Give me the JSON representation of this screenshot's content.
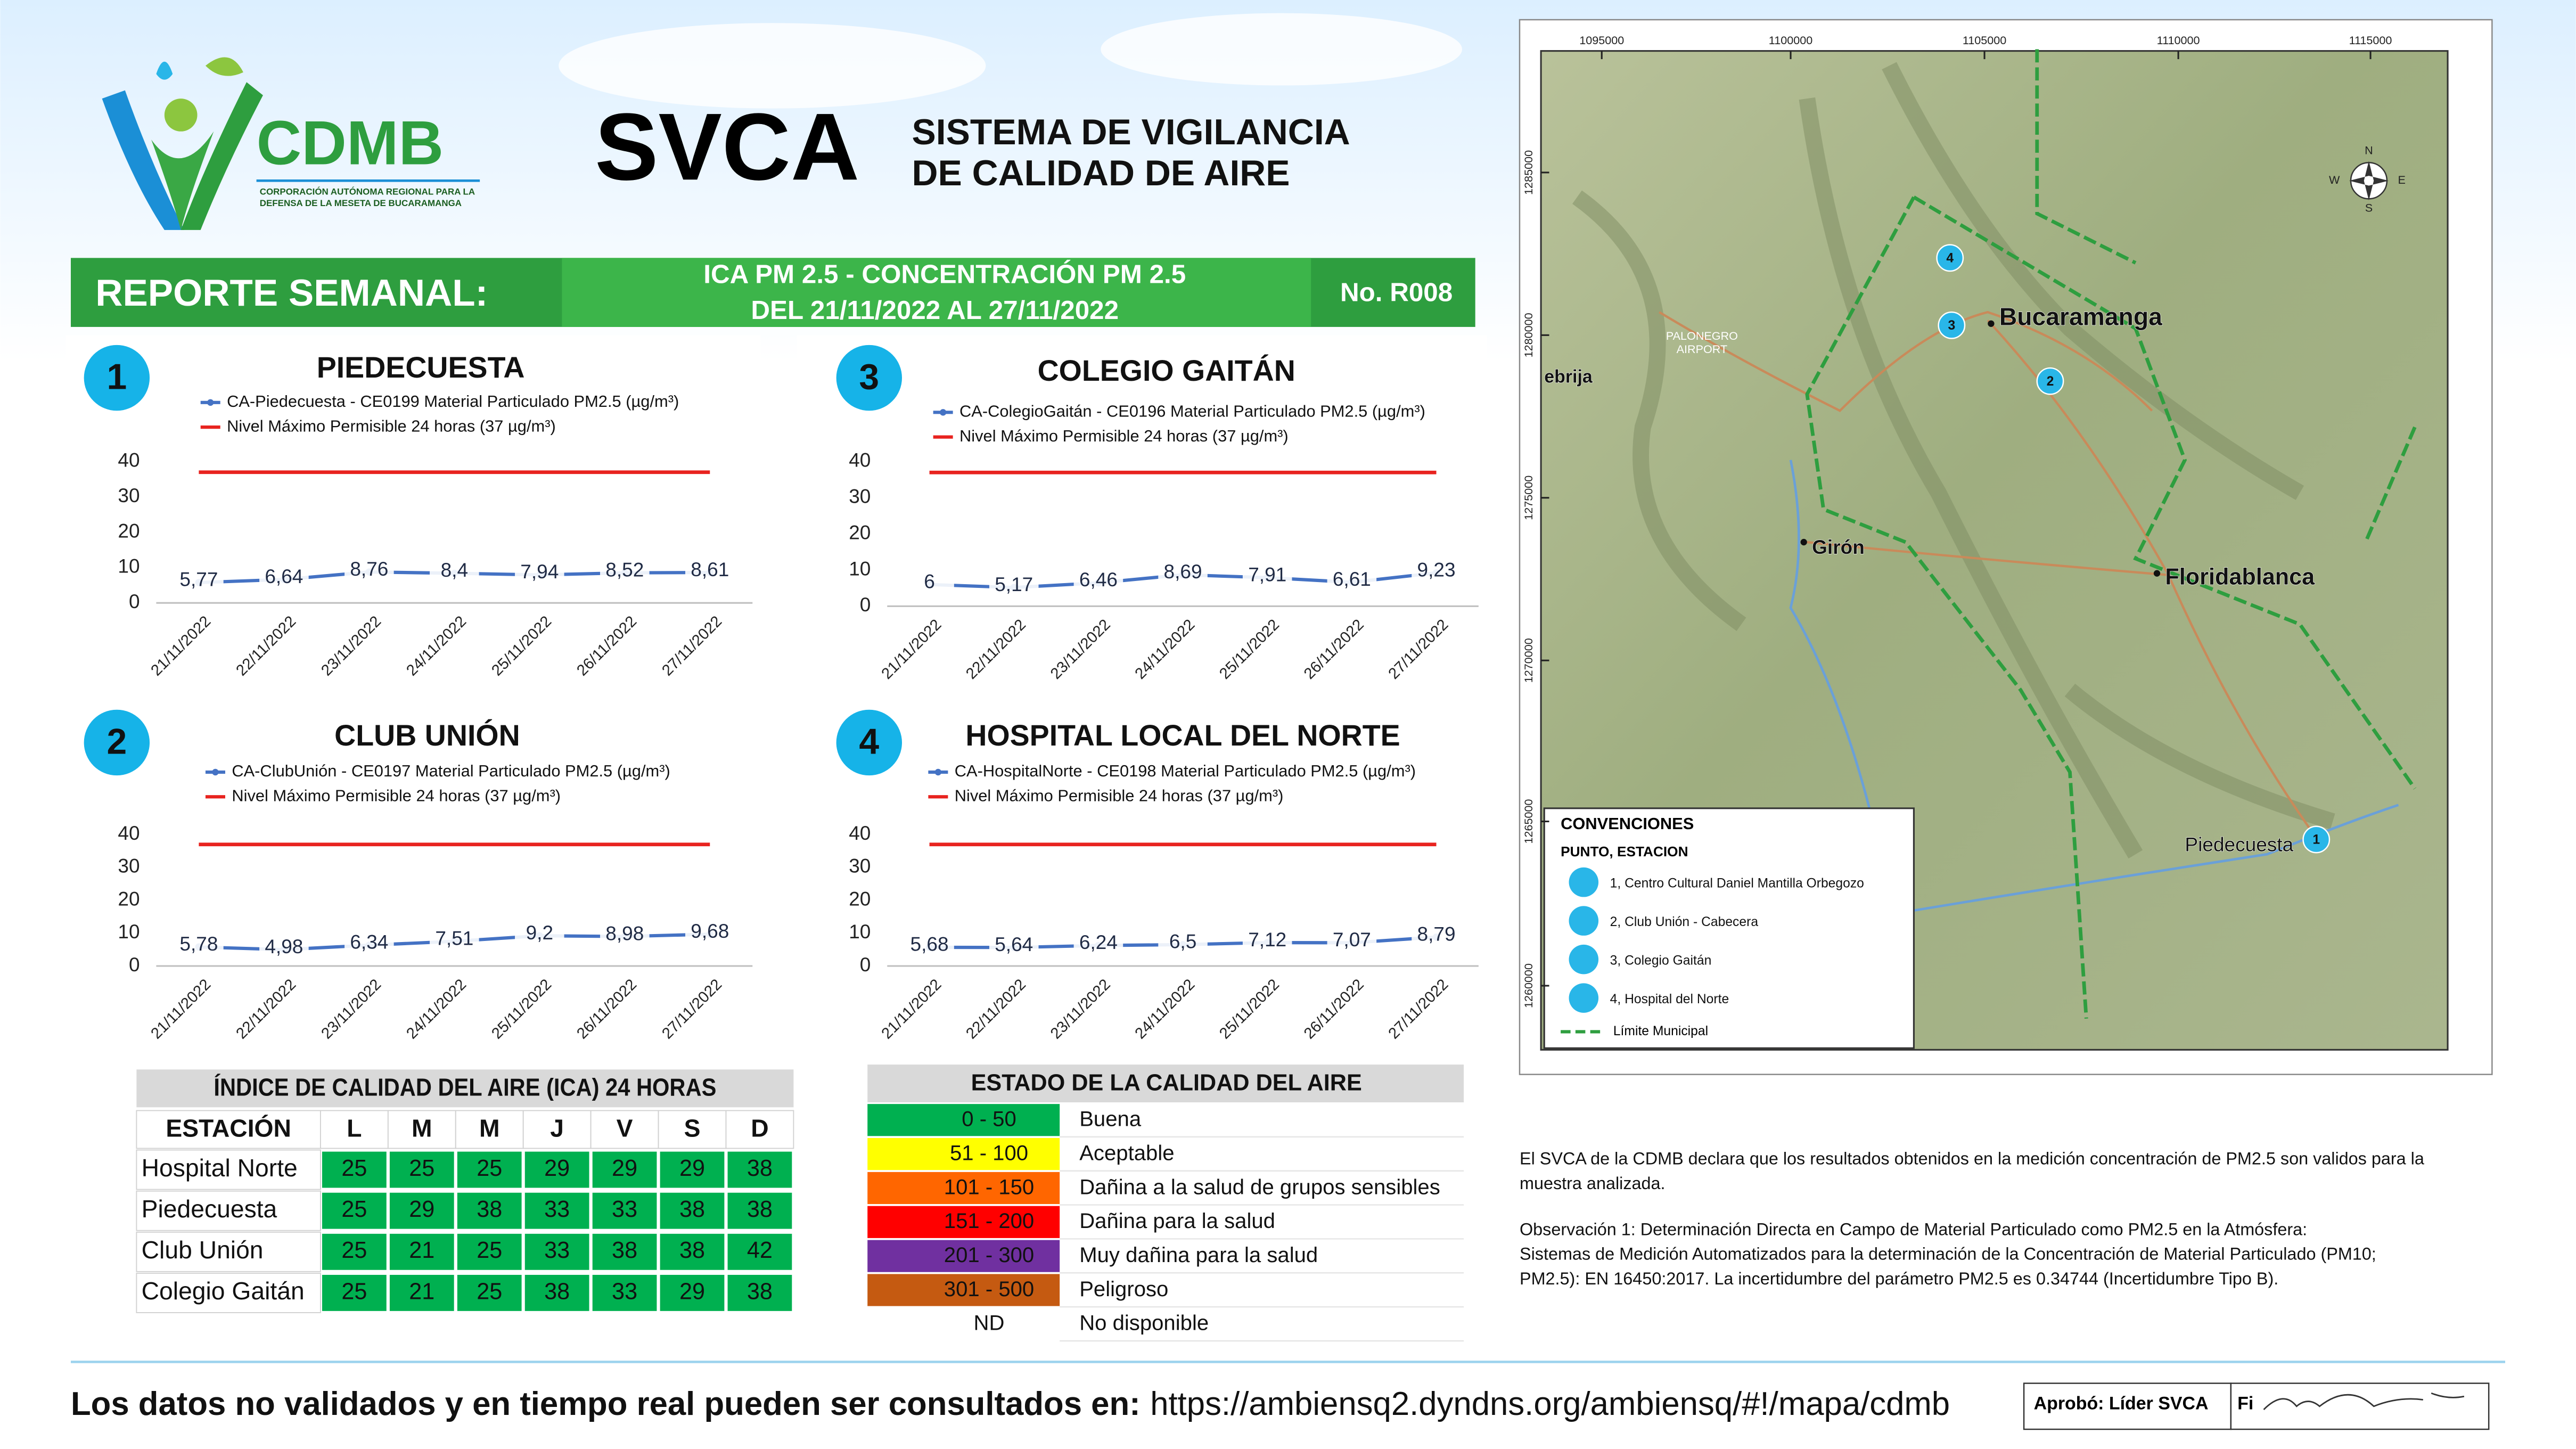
{
  "header": {
    "org": "CDMB",
    "org_sub_1": "CORPORACIÓN AUTÓNOMA REGIONAL PARA LA",
    "org_sub_2": "DEFENSA DE LA MESETA DE BUCARAMANGA",
    "title": "SVCA",
    "subtitle_1": "SISTEMA DE VIGILANCIA",
    "subtitle_2": "DE CALIDAD DE AIRE"
  },
  "banner": {
    "label": "REPORTE SEMANAL:",
    "line1": "ICA PM 2.5 - CONCENTRACIÓN PM 2.5",
    "line2": "DEL 21/11/2022 AL 27/11/2022",
    "number": "No. R008"
  },
  "chart_data": [
    {
      "type": "line",
      "badge": "1",
      "title": "PIEDECUESTA",
      "categories": [
        "21/11/2022",
        "22/11/2022",
        "23/11/2022",
        "24/11/2022",
        "25/11/2022",
        "26/11/2022",
        "27/11/2022"
      ],
      "ylim": [
        0,
        40
      ],
      "yticks": [
        0,
        10,
        20,
        30,
        40
      ],
      "series": [
        {
          "name": "CA-Piedecuesta - CE0199 Material Particulado PM2.5 (µg/m³)",
          "color": "#4472c4",
          "values": [
            5.77,
            6.64,
            8.76,
            8.4,
            7.94,
            8.52,
            8.61
          ],
          "value_labels": [
            "5,77",
            "6,64",
            "8,76",
            "8,4",
            "7,94",
            "8,52",
            "8,61"
          ]
        },
        {
          "name": "Nivel Máximo Permisible 24 horas (37 µg/m³)",
          "color": "#e8231f",
          "values": [
            37,
            37,
            37,
            37,
            37,
            37,
            37
          ]
        }
      ]
    },
    {
      "type": "line",
      "badge": "3",
      "title": "COLEGIO GAITÁN",
      "categories": [
        "21/11/2022",
        "22/11/2022",
        "23/11/2022",
        "24/11/2022",
        "25/11/2022",
        "26/11/2022",
        "27/11/2022"
      ],
      "ylim": [
        0,
        40
      ],
      "yticks": [
        0,
        10,
        20,
        30,
        40
      ],
      "series": [
        {
          "name": "CA-ColegioGaitán  - CE0196 Material Particulado PM2.5 (µg/m³)",
          "color": "#4472c4",
          "values": [
            6,
            5.17,
            6.46,
            8.69,
            7.91,
            6.61,
            9.23
          ],
          "value_labels": [
            "6",
            "5,17",
            "6,46",
            "8,69",
            "7,91",
            "6,61",
            "9,23"
          ]
        },
        {
          "name": "Nivel Máximo Permisible 24 horas (37 µg/m³)",
          "color": "#e8231f",
          "values": [
            37,
            37,
            37,
            37,
            37,
            37,
            37
          ]
        }
      ]
    },
    {
      "type": "line",
      "badge": "2",
      "title": "CLUB UNIÓN",
      "categories": [
        "21/11/2022",
        "22/11/2022",
        "23/11/2022",
        "24/11/2022",
        "25/11/2022",
        "26/11/2022",
        "27/11/2022"
      ],
      "ylim": [
        0,
        40
      ],
      "yticks": [
        0,
        10,
        20,
        30,
        40
      ],
      "series": [
        {
          "name": "CA-ClubUnión - CE0197 Material Particulado PM2.5 (µg/m³)",
          "color": "#4472c4",
          "values": [
            5.78,
            4.98,
            6.34,
            7.51,
            9.2,
            8.98,
            9.68
          ],
          "value_labels": [
            "5,78",
            "4,98",
            "6,34",
            "7,51",
            "9,2",
            "8,98",
            "9,68"
          ]
        },
        {
          "name": "Nivel Máximo Permisible 24 horas (37 µg/m³)",
          "color": "#e8231f",
          "values": [
            37,
            37,
            37,
            37,
            37,
            37,
            37
          ]
        }
      ]
    },
    {
      "type": "line",
      "badge": "4",
      "title": "HOSPITAL LOCAL DEL NORTE",
      "categories": [
        "21/11/2022",
        "22/11/2022",
        "23/11/2022",
        "24/11/2022",
        "25/11/2022",
        "26/11/2022",
        "27/11/2022"
      ],
      "ylim": [
        0,
        40
      ],
      "yticks": [
        0,
        10,
        20,
        30,
        40
      ],
      "series": [
        {
          "name": "CA-HospitalNorte - CE0198 Material Particulado PM2.5 (µg/m³)",
          "color": "#4472c4",
          "values": [
            5.68,
            5.64,
            6.24,
            6.5,
            7.12,
            7.07,
            8.79
          ],
          "value_labels": [
            "5,68",
            "5,64",
            "6,24",
            "6,5",
            "7,12",
            "7,07",
            "8,79"
          ]
        },
        {
          "name": "Nivel Máximo Permisible 24 horas (37 µg/m³)",
          "color": "#e8231f",
          "values": [
            37,
            37,
            37,
            37,
            37,
            37,
            37
          ]
        }
      ]
    }
  ],
  "ica_table": {
    "title": "ÍNDICE DE CALIDAD DEL AIRE (ICA) 24 HORAS",
    "header": [
      "ESTACIÓN",
      "L",
      "M",
      "M",
      "J",
      "V",
      "S",
      "D"
    ],
    "rows": [
      [
        "Hospital Norte",
        25,
        25,
        25,
        29,
        29,
        29,
        38
      ],
      [
        "Piedecuesta",
        25,
        29,
        38,
        33,
        33,
        38,
        38
      ],
      [
        "Club Unión",
        25,
        21,
        25,
        33,
        38,
        38,
        42
      ],
      [
        "Colegio Gaitán",
        25,
        21,
        25,
        38,
        33,
        29,
        38
      ]
    ]
  },
  "air_quality": {
    "title": "ESTADO DE LA CALIDAD DEL AIRE",
    "rows": [
      {
        "range": "0 - 50",
        "label": "Buena",
        "color": "#00b050"
      },
      {
        "range": "51 - 100",
        "label": "Aceptable",
        "color": "#ffff00"
      },
      {
        "range": "101 - 150",
        "label": "Dañina a la salud de grupos sensibles",
        "color": "#ff6600"
      },
      {
        "range": "151 - 200",
        "label": "Dañina para la salud",
        "color": "#ff0000"
      },
      {
        "range": "201 - 300",
        "label": "Muy dañina para la salud",
        "color": "#7030a0"
      },
      {
        "range": "301 - 500",
        "label": "Peligroso",
        "color": "#c55a11"
      },
      {
        "range": "ND",
        "label": "No disponible",
        "color": "#ffffff"
      }
    ]
  },
  "map": {
    "x_labels": [
      "1095000",
      "1100000",
      "1105000",
      "1110000",
      "1115000"
    ],
    "y_labels": [
      "1285000",
      "1280000",
      "1275000",
      "1270000",
      "1265000",
      "1260000"
    ],
    "compass": [
      "N",
      "E",
      "S",
      "W"
    ],
    "places": [
      "Bucaramanga",
      "Girón",
      "Floridablanca",
      "Piedecuesta",
      "ebrija",
      "PALONEGRO",
      "AIRPORT"
    ],
    "stations": [
      "4",
      "3",
      "2",
      "1"
    ],
    "legend_title": "CONVENCIONES",
    "legend_subtitle": "PUNTO, ESTACION",
    "legend_items": [
      "1, Centro Cultural Daniel Mantilla Orbegozo",
      "2, Club Unión - Cabecera",
      "3, Colegio Gaitán",
      "4, Hospital del Norte"
    ],
    "legend_limit": "Límite Municipal"
  },
  "notes": [
    "El SVCA  de la CDMB declara que los resultados obtenidos en la medición concentración de PM2.5 son validos para la",
    "muestra  analizada.",
    "Observación 1: Determinación Directa en Campo de Material Particulado como PM2.5 en la Atmósfera:",
    "Sistemas de Medición Automatizados para la  determinación de la Concentración de Material Particulado (PM10;",
    "PM2.5): EN 16450:2017. La incertidumbre del parámetro PM2.5 es 0.34744 (Incertidumbre Tipo B)."
  ],
  "footer": {
    "prefix": "Los datos no validados y en tiempo real pueden ser consultados en:",
    "url": "https://ambiensq2.dyndns.org/ambiensq/#!/mapa/cdmb",
    "approval": "Aprobó: Líder SVCA",
    "signature_label": "Fi"
  }
}
